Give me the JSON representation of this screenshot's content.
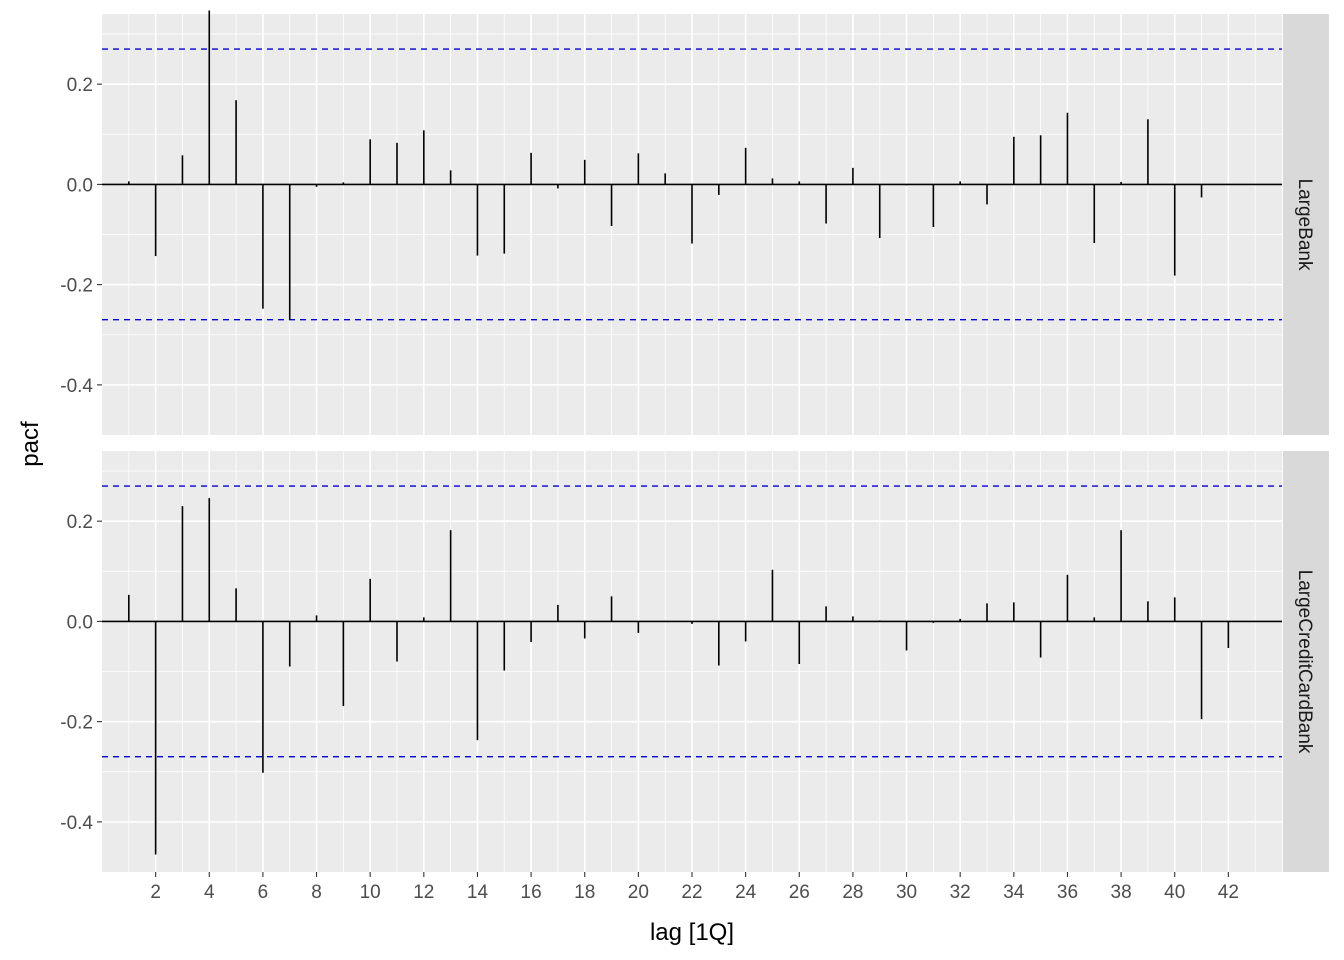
{
  "chart_data": {
    "type": "bar",
    "subtype": "pacf-facets",
    "xlabel": "lag [1Q]",
    "ylabel": "pacf",
    "xlim": [
      0,
      44
    ],
    "ylim": [
      -0.5,
      0.34
    ],
    "x_ticks": [
      2,
      4,
      6,
      8,
      10,
      12,
      14,
      16,
      18,
      20,
      22,
      24,
      26,
      28,
      30,
      32,
      34,
      36,
      38,
      40,
      42
    ],
    "y_ticks": [
      0.2,
      0.0,
      -0.2,
      -0.4
    ],
    "y_tick_labels": [
      "0.2",
      "0.0",
      "-0.2",
      "-0.4"
    ],
    "significance_bound": 0.27,
    "colors": {
      "panel_background": "#ebebeb",
      "grid": "#ffffff",
      "bar": "#000000",
      "significance_line": "#0000cc",
      "strip_background": "#d9d9d9"
    },
    "grid": true,
    "panels": [
      {
        "strip_label": "LargeBank",
        "lags": [
          1,
          2,
          3,
          4,
          5,
          6,
          7,
          8,
          9,
          10,
          11,
          12,
          13,
          14,
          15,
          16,
          17,
          18,
          19,
          20,
          21,
          22,
          23,
          24,
          25,
          26,
          27,
          28,
          29,
          30,
          31,
          32,
          33,
          34,
          35,
          36,
          37,
          38,
          39,
          40,
          41
        ],
        "values": [
          0.006,
          -0.143,
          0.058,
          0.347,
          0.168,
          -0.248,
          -0.27,
          -0.005,
          0.004,
          0.09,
          0.083,
          0.108,
          0.028,
          -0.142,
          -0.138,
          0.063,
          -0.008,
          0.049,
          -0.083,
          0.062,
          0.022,
          -0.118,
          -0.021,
          0.073,
          0.012,
          0.006,
          -0.078,
          0.033,
          -0.107,
          -0.002,
          -0.085,
          0.006,
          -0.04,
          0.095,
          0.098,
          0.143,
          -0.117,
          0.005,
          0.13,
          -0.182,
          -0.026
        ]
      },
      {
        "strip_label": "LargeCreditCardBank",
        "lags": [
          1,
          2,
          3,
          4,
          5,
          6,
          7,
          8,
          9,
          10,
          11,
          12,
          13,
          14,
          15,
          16,
          17,
          18,
          19,
          20,
          21,
          22,
          23,
          24,
          25,
          26,
          27,
          28,
          29,
          30,
          31,
          32,
          33,
          34,
          35,
          36,
          37,
          38,
          39,
          40,
          41,
          42
        ],
        "values": [
          0.053,
          -0.465,
          0.23,
          0.246,
          0.066,
          -0.302,
          -0.09,
          0.012,
          -0.169,
          0.085,
          -0.08,
          0.008,
          0.182,
          -0.237,
          -0.098,
          -0.041,
          0.033,
          -0.034,
          0.05,
          -0.023,
          0.001,
          -0.005,
          -0.088,
          -0.04,
          0.103,
          -0.085,
          0.03,
          0.01,
          0.002,
          -0.058,
          -0.003,
          0.005,
          0.036,
          0.038,
          -0.072,
          0.093,
          0.008,
          0.182,
          0.04,
          0.048,
          -0.195,
          -0.053
        ]
      }
    ]
  }
}
